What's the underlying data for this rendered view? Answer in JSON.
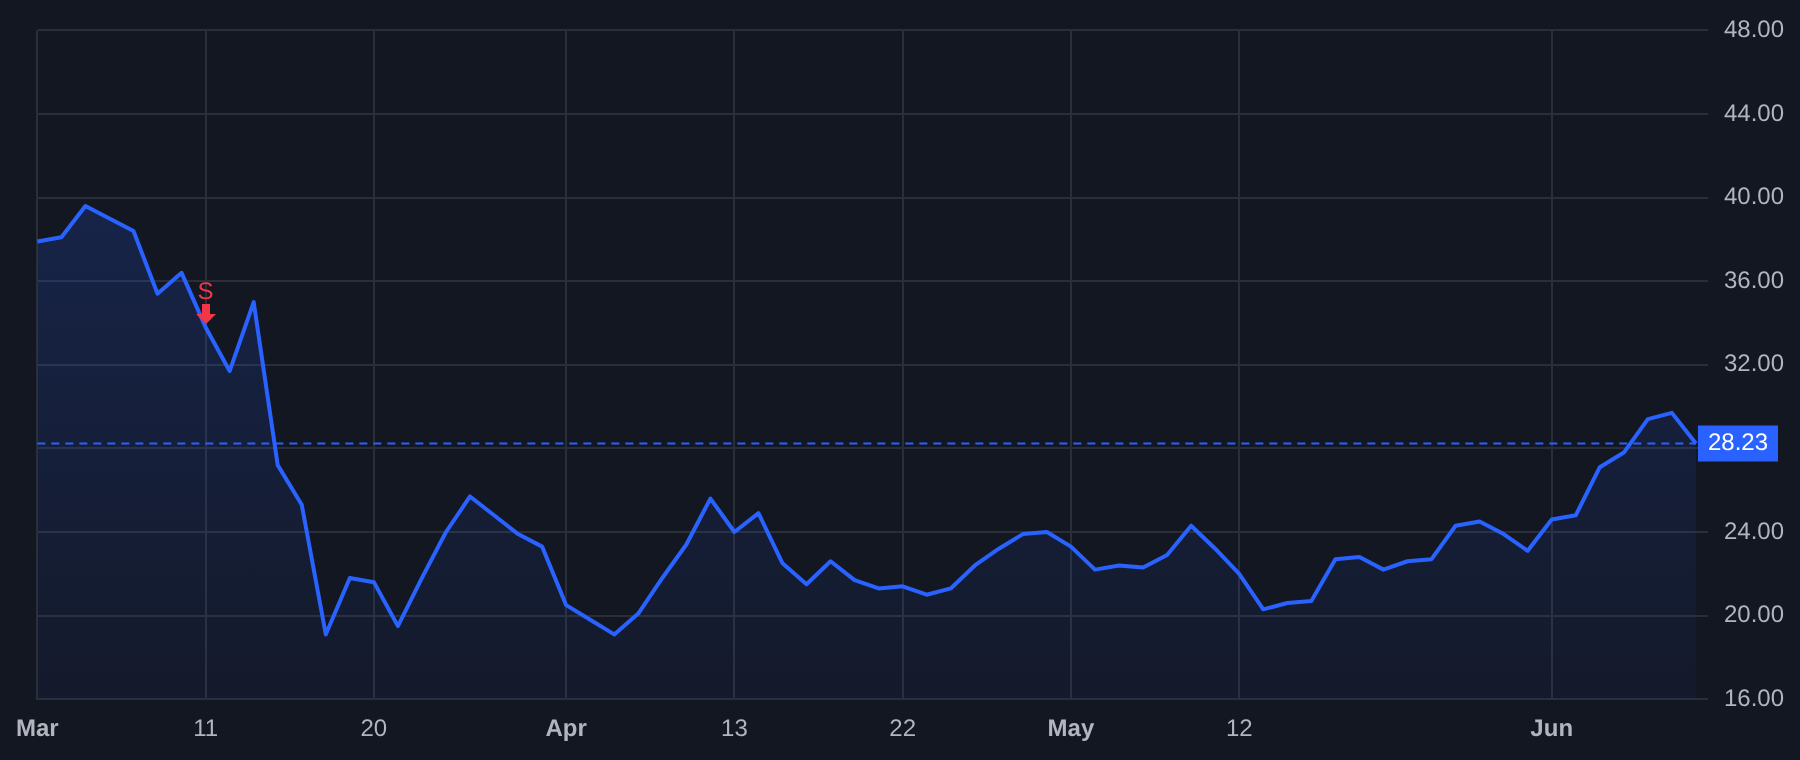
{
  "chart_data": {
    "type": "area",
    "categories": [
      "Mar",
      null,
      null,
      null,
      null,
      null,
      null,
      "11",
      null,
      null,
      null,
      null,
      null,
      null,
      "20",
      null,
      null,
      null,
      null,
      null,
      null,
      null,
      "Apr",
      null,
      null,
      null,
      null,
      null,
      null,
      "13",
      null,
      null,
      null,
      null,
      null,
      null,
      "22",
      null,
      null,
      null,
      null,
      null,
      null,
      "May",
      null,
      null,
      null,
      null,
      null,
      null,
      "12",
      null,
      null,
      null,
      null,
      null,
      null,
      null,
      null,
      null,
      null,
      null,
      null,
      "Jun",
      null,
      null,
      null,
      null,
      null,
      null
    ],
    "series": [
      {
        "color": "#2962ff",
        "values": [
          37.9,
          38.1,
          39.6,
          39.0,
          38.4,
          35.4,
          36.4,
          33.8,
          31.7,
          35.0,
          27.2,
          25.3,
          19.1,
          21.8,
          21.6,
          19.5,
          21.8,
          24.0,
          25.7,
          24.8,
          23.9,
          23.3,
          20.5,
          19.8,
          19.1,
          20.1,
          21.8,
          23.4,
          25.6,
          24.0,
          24.9,
          22.5,
          21.5,
          22.6,
          21.7,
          21.3,
          21.4,
          21.0,
          21.3,
          22.4,
          23.2,
          23.9,
          24.0,
          23.3,
          22.2,
          22.4,
          22.3,
          22.9,
          24.3,
          23.2,
          22.0,
          20.3,
          20.6,
          20.7,
          22.7,
          22.8,
          22.2,
          22.6,
          22.7,
          24.3,
          24.5,
          23.9,
          23.1,
          24.6,
          24.8,
          27.1,
          27.8,
          29.4,
          29.7,
          28.23
        ]
      }
    ],
    "ylim": [
      16,
      48
    ],
    "yticks": [
      {
        "value": 16,
        "label": "16.00"
      },
      {
        "value": 20,
        "label": "20.00"
      },
      {
        "value": 24,
        "label": "24.00"
      },
      {
        "value": 28,
        "label": null
      },
      {
        "value": 32,
        "label": "32.00"
      },
      {
        "value": 36,
        "label": "36.00"
      },
      {
        "value": 40,
        "label": "40.00"
      },
      {
        "value": 44,
        "label": "44.00"
      },
      {
        "value": 48,
        "label": "48.00"
      }
    ],
    "ref_lines": [
      {
        "axis": "y",
        "value": 28.23,
        "label": "28.23",
        "color": "#2962ff",
        "line_style": "dashed"
      }
    ],
    "annotations": [
      {
        "text": "S",
        "x": "11",
        "y": 33.8
      }
    ],
    "grid": true,
    "legend": false,
    "marker": "none",
    "line_style": "solid"
  }
}
